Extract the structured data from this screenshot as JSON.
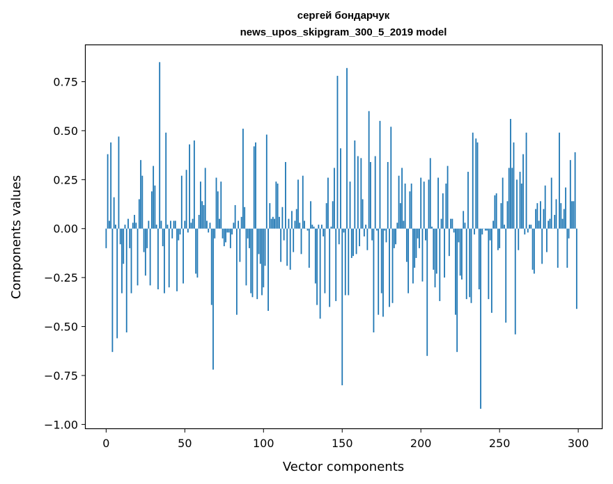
{
  "chart_data": {
    "type": "bar",
    "title": "сергей бондарчук",
    "subtitle": "news_upos_skipgram_300_5_2019 model",
    "xlabel": "Vector components",
    "ylabel": "Components values",
    "xlim": [
      -13,
      315
    ],
    "ylim": [
      -1.02,
      0.94
    ],
    "xticks": [
      0,
      50,
      100,
      150,
      200,
      250,
      300
    ],
    "yticks": [
      -1.0,
      -0.75,
      -0.5,
      -0.25,
      0.0,
      0.25,
      0.5,
      0.75
    ],
    "ytick_labels": [
      "−1.00",
      "−0.75",
      "−0.50",
      "−0.25",
      "0.00",
      "0.25",
      "0.50",
      "0.75"
    ],
    "bar_color": "#1f77b4",
    "grid": false,
    "values": [
      -0.1,
      0.38,
      0.04,
      0.44,
      -0.63,
      0.16,
      0.02,
      -0.56,
      0.47,
      -0.08,
      -0.33,
      -0.18,
      0.02,
      -0.53,
      0.05,
      -0.1,
      -0.33,
      0.03,
      0.07,
      0.03,
      -0.29,
      0.15,
      0.35,
      0.27,
      -0.12,
      -0.24,
      -0.1,
      0.04,
      -0.29,
      0.19,
      0.32,
      0.22,
      0.02,
      -0.31,
      0.85,
      0.04,
      -0.09,
      -0.33,
      0.49,
      0.02,
      -0.3,
      0.04,
      -0.05,
      0.04,
      0.04,
      -0.32,
      -0.06,
      -0.03,
      0.27,
      -0.28,
      0.04,
      0.3,
      -0.02,
      0.43,
      0.03,
      0.05,
      0.45,
      -0.23,
      -0.25,
      0.07,
      0.24,
      0.14,
      0.12,
      0.31,
      0.04,
      -0.02,
      0.03,
      -0.39,
      -0.72,
      -0.05,
      0.26,
      0.19,
      0.05,
      0.24,
      -0.05,
      -0.09,
      -0.07,
      -0.02,
      -0.02,
      -0.1,
      -0.03,
      0.03,
      0.12,
      -0.44,
      0.04,
      -0.17,
      0.06,
      0.51,
      0.11,
      -0.29,
      -0.05,
      -0.1,
      -0.33,
      -0.35,
      0.42,
      0.44,
      -0.36,
      -0.13,
      -0.18,
      -0.34,
      -0.3,
      -0.19,
      0.48,
      -0.42,
      0.13,
      0.05,
      0.06,
      0.05,
      0.24,
      0.23,
      0.06,
      -0.17,
      0.11,
      -0.06,
      0.34,
      -0.19,
      0.05,
      -0.21,
      0.09,
      -0.12,
      0.04,
      0.1,
      0.25,
      0.03,
      -0.13,
      0.27,
      0.04,
      0.0,
      -0.01,
      -0.2,
      0.14,
      0.02,
      0.01,
      -0.28,
      -0.39,
      0.02,
      -0.46,
      0.02,
      -0.04,
      -0.33,
      0.13,
      0.26,
      -0.4,
      0.01,
      0.14,
      0.31,
      -0.37,
      0.78,
      -0.08,
      0.41,
      -0.8,
      -0.02,
      -0.34,
      0.82,
      -0.34,
      0.24,
      -0.15,
      -0.14,
      0.45,
      -0.13,
      0.37,
      -0.09,
      0.36,
      0.15,
      -0.04,
      0.02,
      -0.11,
      0.6,
      0.34,
      -0.06,
      -0.53,
      0.37,
      -0.01,
      -0.44,
      0.55,
      -0.33,
      -0.45,
      -0.01,
      -0.07,
      0.34,
      -0.4,
      0.52,
      -0.38,
      -0.1,
      -0.08,
      0.03,
      0.27,
      0.13,
      0.31,
      0.04,
      0.23,
      -0.17,
      -0.33,
      0.19,
      0.23,
      -0.28,
      -0.2,
      -0.15,
      -0.05,
      -0.1,
      0.26,
      -0.27,
      0.24,
      -0.06,
      -0.65,
      0.25,
      0.36,
      0.01,
      -0.21,
      -0.3,
      -0.23,
      0.26,
      -0.37,
      0.05,
      0.18,
      -0.25,
      0.23,
      0.32,
      -0.14,
      0.05,
      0.05,
      -0.02,
      -0.44,
      -0.63,
      -0.07,
      -0.24,
      -0.26,
      0.09,
      0.03,
      -0.36,
      0.29,
      -0.35,
      -0.38,
      0.49,
      -0.03,
      0.46,
      0.44,
      -0.31,
      -0.92,
      -0.03,
      0.0,
      -0.01,
      -0.01,
      -0.36,
      -0.06,
      -0.43,
      0.04,
      0.17,
      0.18,
      -0.11,
      -0.1,
      0.13,
      0.26,
      0.02,
      -0.48,
      0.14,
      0.31,
      0.56,
      0.31,
      0.44,
      -0.54,
      0.25,
      -0.11,
      0.29,
      0.23,
      0.38,
      -0.03,
      0.49,
      -0.02,
      0.02,
      0.02,
      -0.21,
      -0.23,
      0.1,
      0.13,
      0.04,
      0.14,
      -0.18,
      0.1,
      0.22,
      -0.12,
      0.04,
      0.05,
      0.26,
      0.0,
      0.07,
      0.15,
      -0.2,
      0.49,
      0.13,
      0.05,
      0.1,
      0.21,
      -0.2,
      -0.05,
      0.35,
      0.14,
      0.14,
      0.39,
      -0.41
    ]
  }
}
